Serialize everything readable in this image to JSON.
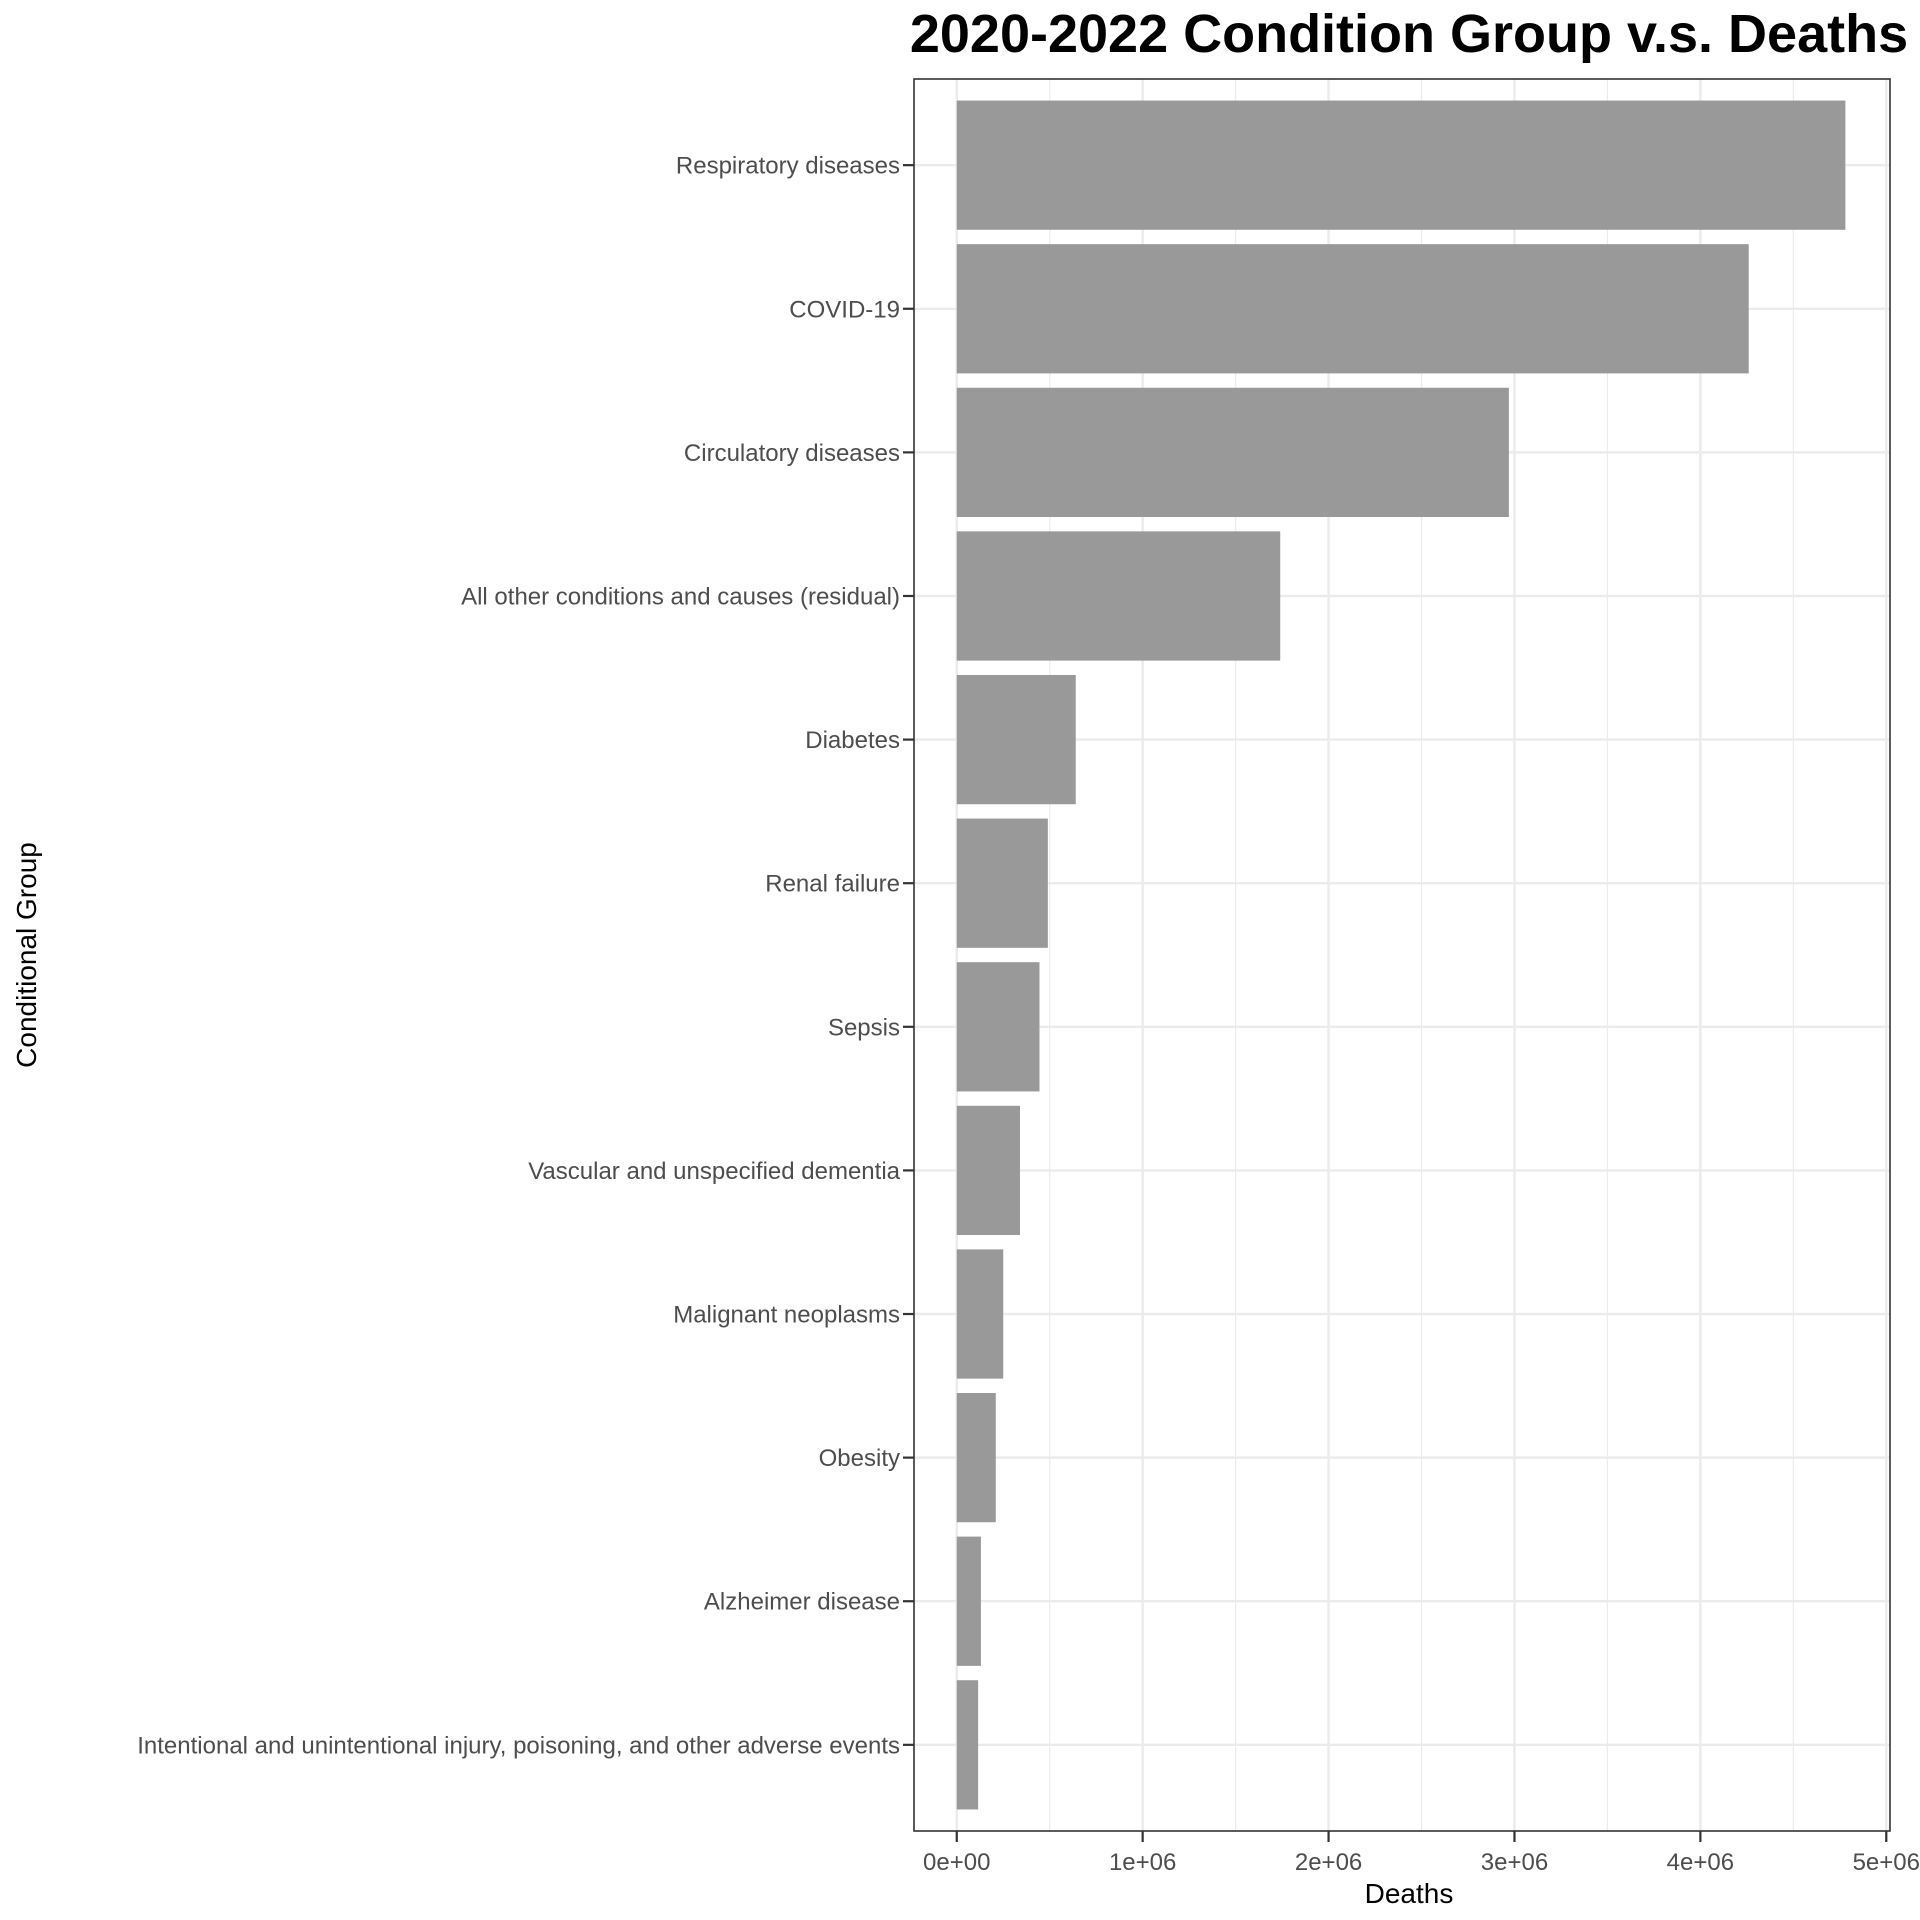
{
  "chart_data": {
    "type": "bar",
    "orientation": "horizontal",
    "title": "2020-2022 Condition Group v.s. Deaths",
    "xlabel": "Deaths",
    "ylabel": "Conditional Group",
    "categories": [
      "Respiratory diseases",
      "COVID-19",
      "Circulatory diseases",
      "All other conditions and causes (residual)",
      "Diabetes",
      "Renal failure",
      "Sepsis",
      "Vascular and unspecified dementia",
      "Malignant neoplasms",
      "Obesity",
      "Alzheimer disease",
      "Intentional and unintentional injury, poisoning, and other adverse events"
    ],
    "values": [
      4780000,
      4260000,
      2970000,
      1740000,
      640000,
      490000,
      445000,
      340000,
      250000,
      210000,
      130000,
      115000
    ],
    "xlim": [
      -230000,
      5020000
    ],
    "x_ticks": [
      0,
      1000000,
      2000000,
      3000000,
      4000000,
      5000000
    ],
    "x_tick_labels": [
      "0e+00",
      "1e+06",
      "2e+06",
      "3e+06",
      "4e+06",
      "5e+06"
    ],
    "grid": true,
    "bar_color": "#999999",
    "theme": "bw"
  }
}
